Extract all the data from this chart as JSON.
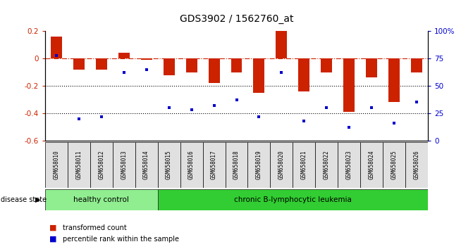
{
  "title": "GDS3902 / 1562760_at",
  "samples": [
    "GSM658010",
    "GSM658011",
    "GSM658012",
    "GSM658013",
    "GSM658014",
    "GSM658015",
    "GSM658016",
    "GSM658017",
    "GSM658018",
    "GSM658019",
    "GSM658020",
    "GSM658021",
    "GSM658022",
    "GSM658023",
    "GSM658024",
    "GSM658025",
    "GSM658026"
  ],
  "bar_values": [
    0.16,
    -0.08,
    -0.08,
    0.04,
    -0.01,
    -0.12,
    -0.1,
    -0.18,
    -0.1,
    -0.25,
    0.2,
    -0.24,
    -0.1,
    -0.39,
    -0.14,
    -0.32,
    -0.1
  ],
  "dot_values": [
    78,
    20,
    22,
    62,
    65,
    30,
    28,
    32,
    37,
    22,
    62,
    18,
    30,
    12,
    30,
    16,
    35
  ],
  "groups": [
    {
      "label": "healthy control",
      "start": 0,
      "end": 4,
      "color": "#90EE90"
    },
    {
      "label": "chronic B-lymphocytic leukemia",
      "start": 5,
      "end": 16,
      "color": "#32CD32"
    }
  ],
  "bar_color": "#CC2200",
  "dot_color": "#0000CC",
  "ylim_left": [
    -0.6,
    0.2
  ],
  "ylim_right": [
    0,
    100
  ],
  "dotted_lines": [
    -0.2,
    -0.4
  ],
  "disease_label": "disease state",
  "legend_bar_label": "transformed count",
  "legend_dot_label": "percentile rank within the sample",
  "right_yticks": [
    0,
    25,
    50,
    75,
    100
  ],
  "right_yticklabels": [
    "0",
    "25",
    "50",
    "75",
    "100%"
  ]
}
